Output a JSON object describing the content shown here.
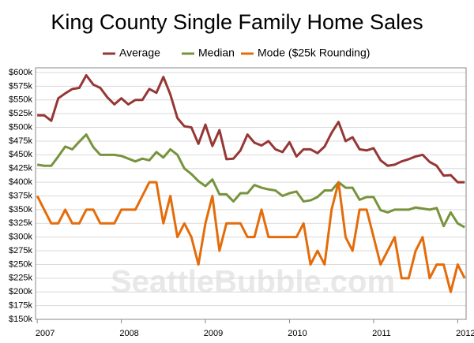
{
  "chart_data": {
    "type": "line",
    "title": "King County Single Family Home Sales",
    "watermark": "SeattleBubble.com",
    "x": [
      2007,
      2007.083,
      2007.167,
      2007.25,
      2007.333,
      2007.417,
      2007.5,
      2007.583,
      2007.667,
      2007.75,
      2007.833,
      2007.917,
      2008,
      2008.083,
      2008.167,
      2008.25,
      2008.333,
      2008.417,
      2008.5,
      2008.583,
      2008.667,
      2008.75,
      2008.833,
      2008.917,
      2009,
      2009.083,
      2009.167,
      2009.25,
      2009.333,
      2009.417,
      2009.5,
      2009.583,
      2009.667,
      2009.75,
      2009.833,
      2009.917,
      2010,
      2010.083,
      2010.167,
      2010.25,
      2010.333,
      2010.417,
      2010.5,
      2010.583,
      2010.667,
      2010.75,
      2010.833,
      2010.917,
      2011,
      2011.083,
      2011.167,
      2011.25,
      2011.333,
      2011.417,
      2011.5,
      2011.583,
      2011.667,
      2011.75,
      2011.833,
      2011.917,
      2012,
      2012.083
    ],
    "series": [
      {
        "name": "Average",
        "color": "#953735",
        "values": [
          522,
          522,
          512,
          553,
          562,
          570,
          572,
          595,
          578,
          572,
          555,
          542,
          553,
          542,
          550,
          550,
          570,
          563,
          592,
          560,
          517,
          502,
          500,
          470,
          505,
          466,
          495,
          442,
          443,
          458,
          487,
          472,
          467,
          475,
          460,
          455,
          473,
          447,
          460,
          460,
          453,
          465,
          490,
          510,
          475,
          482,
          460,
          458,
          462,
          440,
          430,
          432,
          438,
          442,
          447,
          450,
          437,
          430,
          412,
          413,
          400,
          400
        ]
      },
      {
        "name": "Median",
        "color": "#77933c",
        "values": [
          432,
          430,
          430,
          447,
          465,
          460,
          474,
          487,
          464,
          450,
          450,
          450,
          448,
          443,
          438,
          443,
          440,
          455,
          445,
          460,
          450,
          425,
          415,
          402,
          393,
          405,
          378,
          378,
          365,
          380,
          380,
          395,
          390,
          387,
          385,
          375,
          380,
          383,
          365,
          367,
          373,
          385,
          385,
          400,
          390,
          390,
          368,
          373,
          373,
          349,
          345,
          350,
          350,
          350,
          354,
          352,
          350,
          353,
          320,
          345,
          325,
          318
        ]
      },
      {
        "name": "Mode ($25k Rounding)",
        "color": "#e46c0a",
        "values": [
          375,
          350,
          325,
          325,
          350,
          325,
          325,
          350,
          350,
          325,
          325,
          325,
          350,
          350,
          350,
          375,
          400,
          400,
          325,
          375,
          300,
          325,
          300,
          250,
          325,
          375,
          275,
          325,
          325,
          325,
          300,
          300,
          350,
          300,
          300,
          300,
          300,
          300,
          325,
          250,
          275,
          250,
          350,
          400,
          300,
          275,
          350,
          350,
          300,
          250,
          275,
          300,
          225,
          225,
          275,
          300,
          225,
          250,
          250,
          200,
          250,
          225
        ]
      }
    ],
    "xlim": [
      2006.98,
      2012.1
    ],
    "xticks": [
      2007,
      2008,
      2009,
      2010,
      2011,
      2012
    ],
    "ylim": [
      150,
      600
    ],
    "yticks": [
      {
        "value": 150,
        "label": "$150k"
      },
      {
        "value": 175,
        "label": "$175k"
      },
      {
        "value": 200,
        "label": "$200k"
      },
      {
        "value": 225,
        "label": "$225k"
      },
      {
        "value": 250,
        "label": "$250k"
      },
      {
        "value": 275,
        "label": "$275k"
      },
      {
        "value": 300,
        "label": "$300k"
      },
      {
        "value": 325,
        "label": "$325k"
      },
      {
        "value": 350,
        "label": "$350k"
      },
      {
        "value": 375,
        "label": "$375k"
      },
      {
        "value": 400,
        "label": "$400k"
      },
      {
        "value": 425,
        "label": "$425k"
      },
      {
        "value": 450,
        "label": "$450k"
      },
      {
        "value": 475,
        "label": "$475k"
      },
      {
        "value": 500,
        "label": "$500k"
      },
      {
        "value": 525,
        "label": "$525k"
      },
      {
        "value": 550,
        "label": "$550k"
      },
      {
        "value": 575,
        "label": "$575k"
      },
      {
        "value": 600,
        "label": "$600k"
      }
    ],
    "grid": true
  }
}
